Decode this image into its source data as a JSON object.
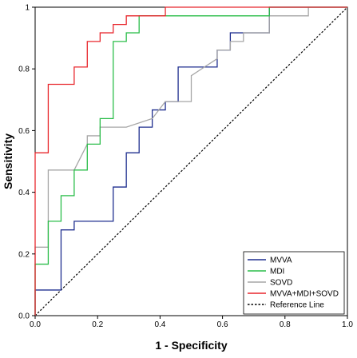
{
  "chart_data": {
    "type": "line",
    "xlabel": "1 - Specificity",
    "ylabel": "Sensitivity",
    "xlim": [
      0,
      1
    ],
    "ylim": [
      0,
      1
    ],
    "xticks": [
      "0.0",
      "0.2",
      "0.4",
      "0.6",
      "0.8",
      "1.0"
    ],
    "yticks": [
      "0.0",
      "0.2",
      "0.4",
      "0.6",
      "0.8",
      "1"
    ],
    "grid": false,
    "legend_position": "bottom-right",
    "series": [
      {
        "name": "MVVA",
        "color": "#1f2f8f",
        "dash": "solid",
        "x": [
          0.0,
          0.0,
          0.042,
          0.042,
          0.083,
          0.083,
          0.125,
          0.125,
          0.25,
          0.25,
          0.292,
          0.292,
          0.333,
          0.333,
          0.375,
          0.375,
          0.417,
          0.417,
          0.458,
          0.458,
          0.5,
          0.5,
          0.583,
          0.583,
          0.625,
          0.625,
          0.75,
          0.75,
          0.917,
          0.917,
          1.0
        ],
        "y": [
          0.0,
          0.083,
          0.083,
          0.083,
          0.083,
          0.278,
          0.278,
          0.306,
          0.306,
          0.417,
          0.417,
          0.528,
          0.528,
          0.611,
          0.611,
          0.667,
          0.667,
          0.694,
          0.694,
          0.806,
          0.806,
          0.806,
          0.806,
          0.861,
          0.861,
          0.917,
          0.917,
          1.0,
          1.0,
          1.0,
          1.0
        ]
      },
      {
        "name": "MDI",
        "color": "#2bbd4a",
        "dash": "solid",
        "x": [
          0.0,
          0.0,
          0.042,
          0.042,
          0.083,
          0.083,
          0.125,
          0.125,
          0.167,
          0.167,
          0.208,
          0.208,
          0.25,
          0.25,
          0.292,
          0.292,
          0.333,
          0.333,
          0.417,
          0.417,
          0.75,
          0.75,
          1.0
        ],
        "y": [
          0.0,
          0.167,
          0.167,
          0.306,
          0.306,
          0.389,
          0.389,
          0.472,
          0.472,
          0.556,
          0.556,
          0.639,
          0.639,
          0.889,
          0.889,
          0.917,
          0.917,
          0.972,
          0.972,
          0.972,
          0.972,
          1.0,
          1.0
        ]
      },
      {
        "name": "SOVD",
        "color": "#a6a6a6",
        "dash": "solid",
        "x": [
          0.0,
          0.0,
          0.042,
          0.042,
          0.125,
          0.167,
          0.167,
          0.208,
          0.208,
          0.292,
          0.375,
          0.417,
          0.417,
          0.5,
          0.5,
          0.542,
          0.583,
          0.583,
          0.625,
          0.625,
          0.667,
          0.667,
          0.75,
          0.75,
          0.875,
          0.875,
          1.0
        ],
        "y": [
          0.0,
          0.222,
          0.222,
          0.472,
          0.472,
          0.556,
          0.583,
          0.583,
          0.611,
          0.611,
          0.639,
          0.694,
          0.694,
          0.694,
          0.778,
          0.806,
          0.833,
          0.861,
          0.861,
          0.889,
          0.889,
          0.917,
          0.917,
          0.972,
          0.972,
          1.0,
          1.0
        ]
      },
      {
        "name": "MVVA+MDI+SOVD",
        "color": "#e8272d",
        "dash": "solid",
        "x": [
          0.0,
          0.0,
          0.042,
          0.042,
          0.083,
          0.083,
          0.125,
          0.125,
          0.167,
          0.167,
          0.208,
          0.208,
          0.25,
          0.25,
          0.292,
          0.292,
          0.417,
          0.417,
          1.0
        ],
        "y": [
          0.0,
          0.528,
          0.528,
          0.75,
          0.75,
          0.75,
          0.75,
          0.806,
          0.806,
          0.889,
          0.889,
          0.917,
          0.917,
          0.944,
          0.944,
          0.972,
          0.972,
          1.0,
          1.0
        ]
      },
      {
        "name": "Reference Line",
        "color": "#000000",
        "dash": "dashed",
        "x": [
          0,
          1
        ],
        "y": [
          0,
          1
        ]
      }
    ]
  }
}
